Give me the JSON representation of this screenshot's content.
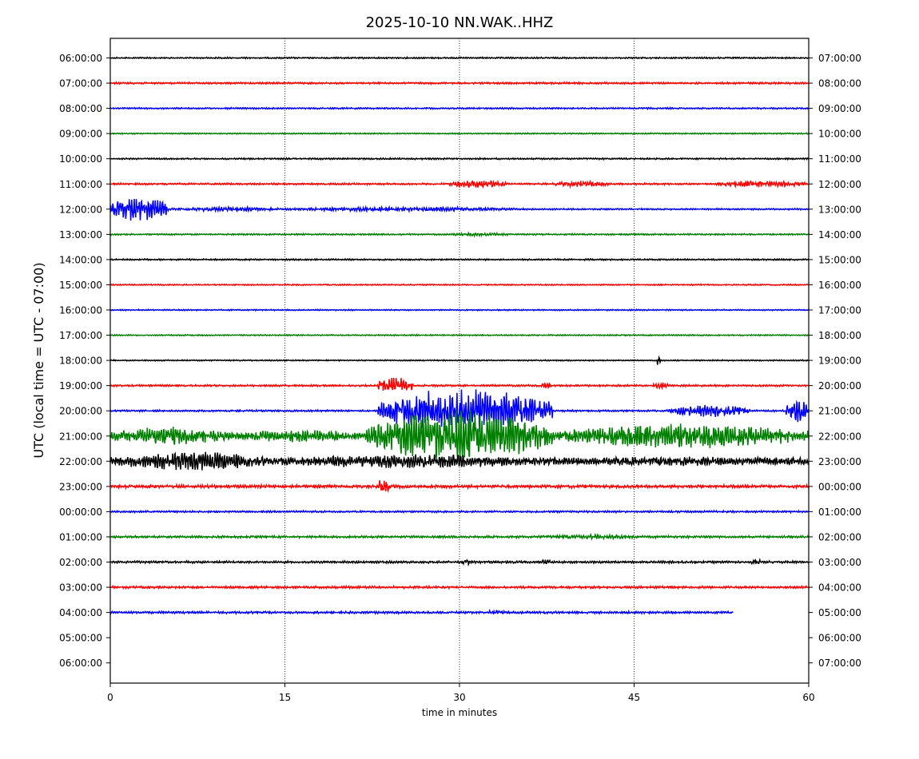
{
  "chart_data": {
    "type": "line",
    "title": "2025-10-10 NN.WAK..HHZ",
    "xlabel": "time in minutes",
    "ylabel": "UTC (local time = UTC - 07:00)",
    "xlim": [
      0,
      60
    ],
    "xticks": [
      "0",
      "15",
      "30",
      "45",
      "60"
    ],
    "xtick_values": [
      0,
      15,
      30,
      45,
      60
    ],
    "vertical_gridlines_at": [
      15,
      30,
      45
    ],
    "row_colors": [
      "#000000",
      "#ff0000",
      "#0000ff",
      "#008000"
    ],
    "left_labels": [
      "06:00:00",
      "07:00:00",
      "08:00:00",
      "09:00:00",
      "10:00:00",
      "11:00:00",
      "12:00:00",
      "13:00:00",
      "14:00:00",
      "15:00:00",
      "16:00:00",
      "17:00:00",
      "18:00:00",
      "19:00:00",
      "20:00:00",
      "21:00:00",
      "22:00:00",
      "23:00:00",
      "00:00:00",
      "01:00:00",
      "02:00:00",
      "03:00:00",
      "04:00:00",
      "05:00:00",
      "06:00:00"
    ],
    "right_labels": [
      "07:00:00",
      "08:00:00",
      "09:00:00",
      "10:00:00",
      "11:00:00",
      "12:00:00",
      "13:00:00",
      "14:00:00",
      "15:00:00",
      "16:00:00",
      "17:00:00",
      "18:00:00",
      "19:00:00",
      "20:00:00",
      "21:00:00",
      "22:00:00",
      "23:00:00",
      "00:00:00",
      "01:00:00",
      "02:00:00",
      "03:00:00",
      "04:00:00",
      "05:00:00",
      "06:00:00",
      "07:00:00"
    ],
    "rows": [
      {
        "utc": "06:00:00",
        "base": 1.0,
        "bursts": []
      },
      {
        "utc": "07:00:00",
        "base": 1.2,
        "bursts": []
      },
      {
        "utc": "08:00:00",
        "base": 1.0,
        "bursts": []
      },
      {
        "utc": "09:00:00",
        "base": 0.8,
        "bursts": []
      },
      {
        "utc": "10:00:00",
        "base": 1.0,
        "bursts": []
      },
      {
        "utc": "11:00:00",
        "base": 1.2,
        "bursts": [
          [
            29,
            34,
            5
          ],
          [
            38,
            43,
            4
          ],
          [
            52,
            60,
            4
          ]
        ]
      },
      {
        "utc": "12:00:00",
        "base": 1.0,
        "bursts": [
          [
            0,
            5,
            16
          ],
          [
            5,
            15,
            3
          ],
          [
            15,
            35,
            3
          ]
        ]
      },
      {
        "utc": "13:00:00",
        "base": 1.0,
        "bursts": [
          [
            28,
            35,
            2
          ]
        ]
      },
      {
        "utc": "14:00:00",
        "base": 1.0,
        "bursts": []
      },
      {
        "utc": "15:00:00",
        "base": 0.8,
        "bursts": []
      },
      {
        "utc": "16:00:00",
        "base": 0.8,
        "bursts": []
      },
      {
        "utc": "17:00:00",
        "base": 0.8,
        "bursts": []
      },
      {
        "utc": "18:00:00",
        "base": 0.8,
        "bursts": [
          [
            46.9,
            47.3,
            10
          ]
        ]
      },
      {
        "utc": "19:00:00",
        "base": 1.2,
        "bursts": [
          [
            23,
            26,
            12
          ],
          [
            37,
            38,
            4
          ],
          [
            46.5,
            48,
            4
          ]
        ]
      },
      {
        "utc": "20:00:00",
        "base": 1.2,
        "bursts": [
          [
            23,
            38,
            30
          ],
          [
            48,
            55,
            8
          ],
          [
            58,
            60,
            16
          ]
        ]
      },
      {
        "utc": "21:00:00",
        "base": 5.0,
        "bursts": [
          [
            0,
            10,
            12
          ],
          [
            10,
            22,
            8
          ],
          [
            22,
            38,
            34
          ],
          [
            38,
            60,
            16
          ]
        ]
      },
      {
        "utc": "22:00:00",
        "base": 5.0,
        "bursts": [
          [
            0,
            14,
            12
          ],
          [
            14,
            38,
            9
          ],
          [
            38,
            60,
            6
          ]
        ]
      },
      {
        "utc": "23:00:00",
        "base": 2.0,
        "bursts": [
          [
            23,
            24,
            12
          ]
        ]
      },
      {
        "utc": "00:00:00",
        "base": 1.2,
        "bursts": []
      },
      {
        "utc": "01:00:00",
        "base": 1.5,
        "bursts": [
          [
            36,
            46,
            3
          ]
        ]
      },
      {
        "utc": "02:00:00",
        "base": 1.5,
        "bursts": [
          [
            30,
            31,
            4
          ],
          [
            37,
            38,
            4
          ],
          [
            55,
            56,
            4
          ]
        ]
      },
      {
        "utc": "03:00:00",
        "base": 1.5,
        "bursts": []
      },
      {
        "utc": "04:00:00",
        "base": 1.5,
        "bursts": [
          [
            32,
            34,
            3
          ]
        ],
        "end_minute": 53.5
      },
      {
        "utc": "05:00:00",
        "base": 0,
        "bursts": [],
        "end_minute": 0
      },
      {
        "utc": "06:00:00",
        "base": 0,
        "bursts": [],
        "end_minute": 0
      }
    ]
  }
}
